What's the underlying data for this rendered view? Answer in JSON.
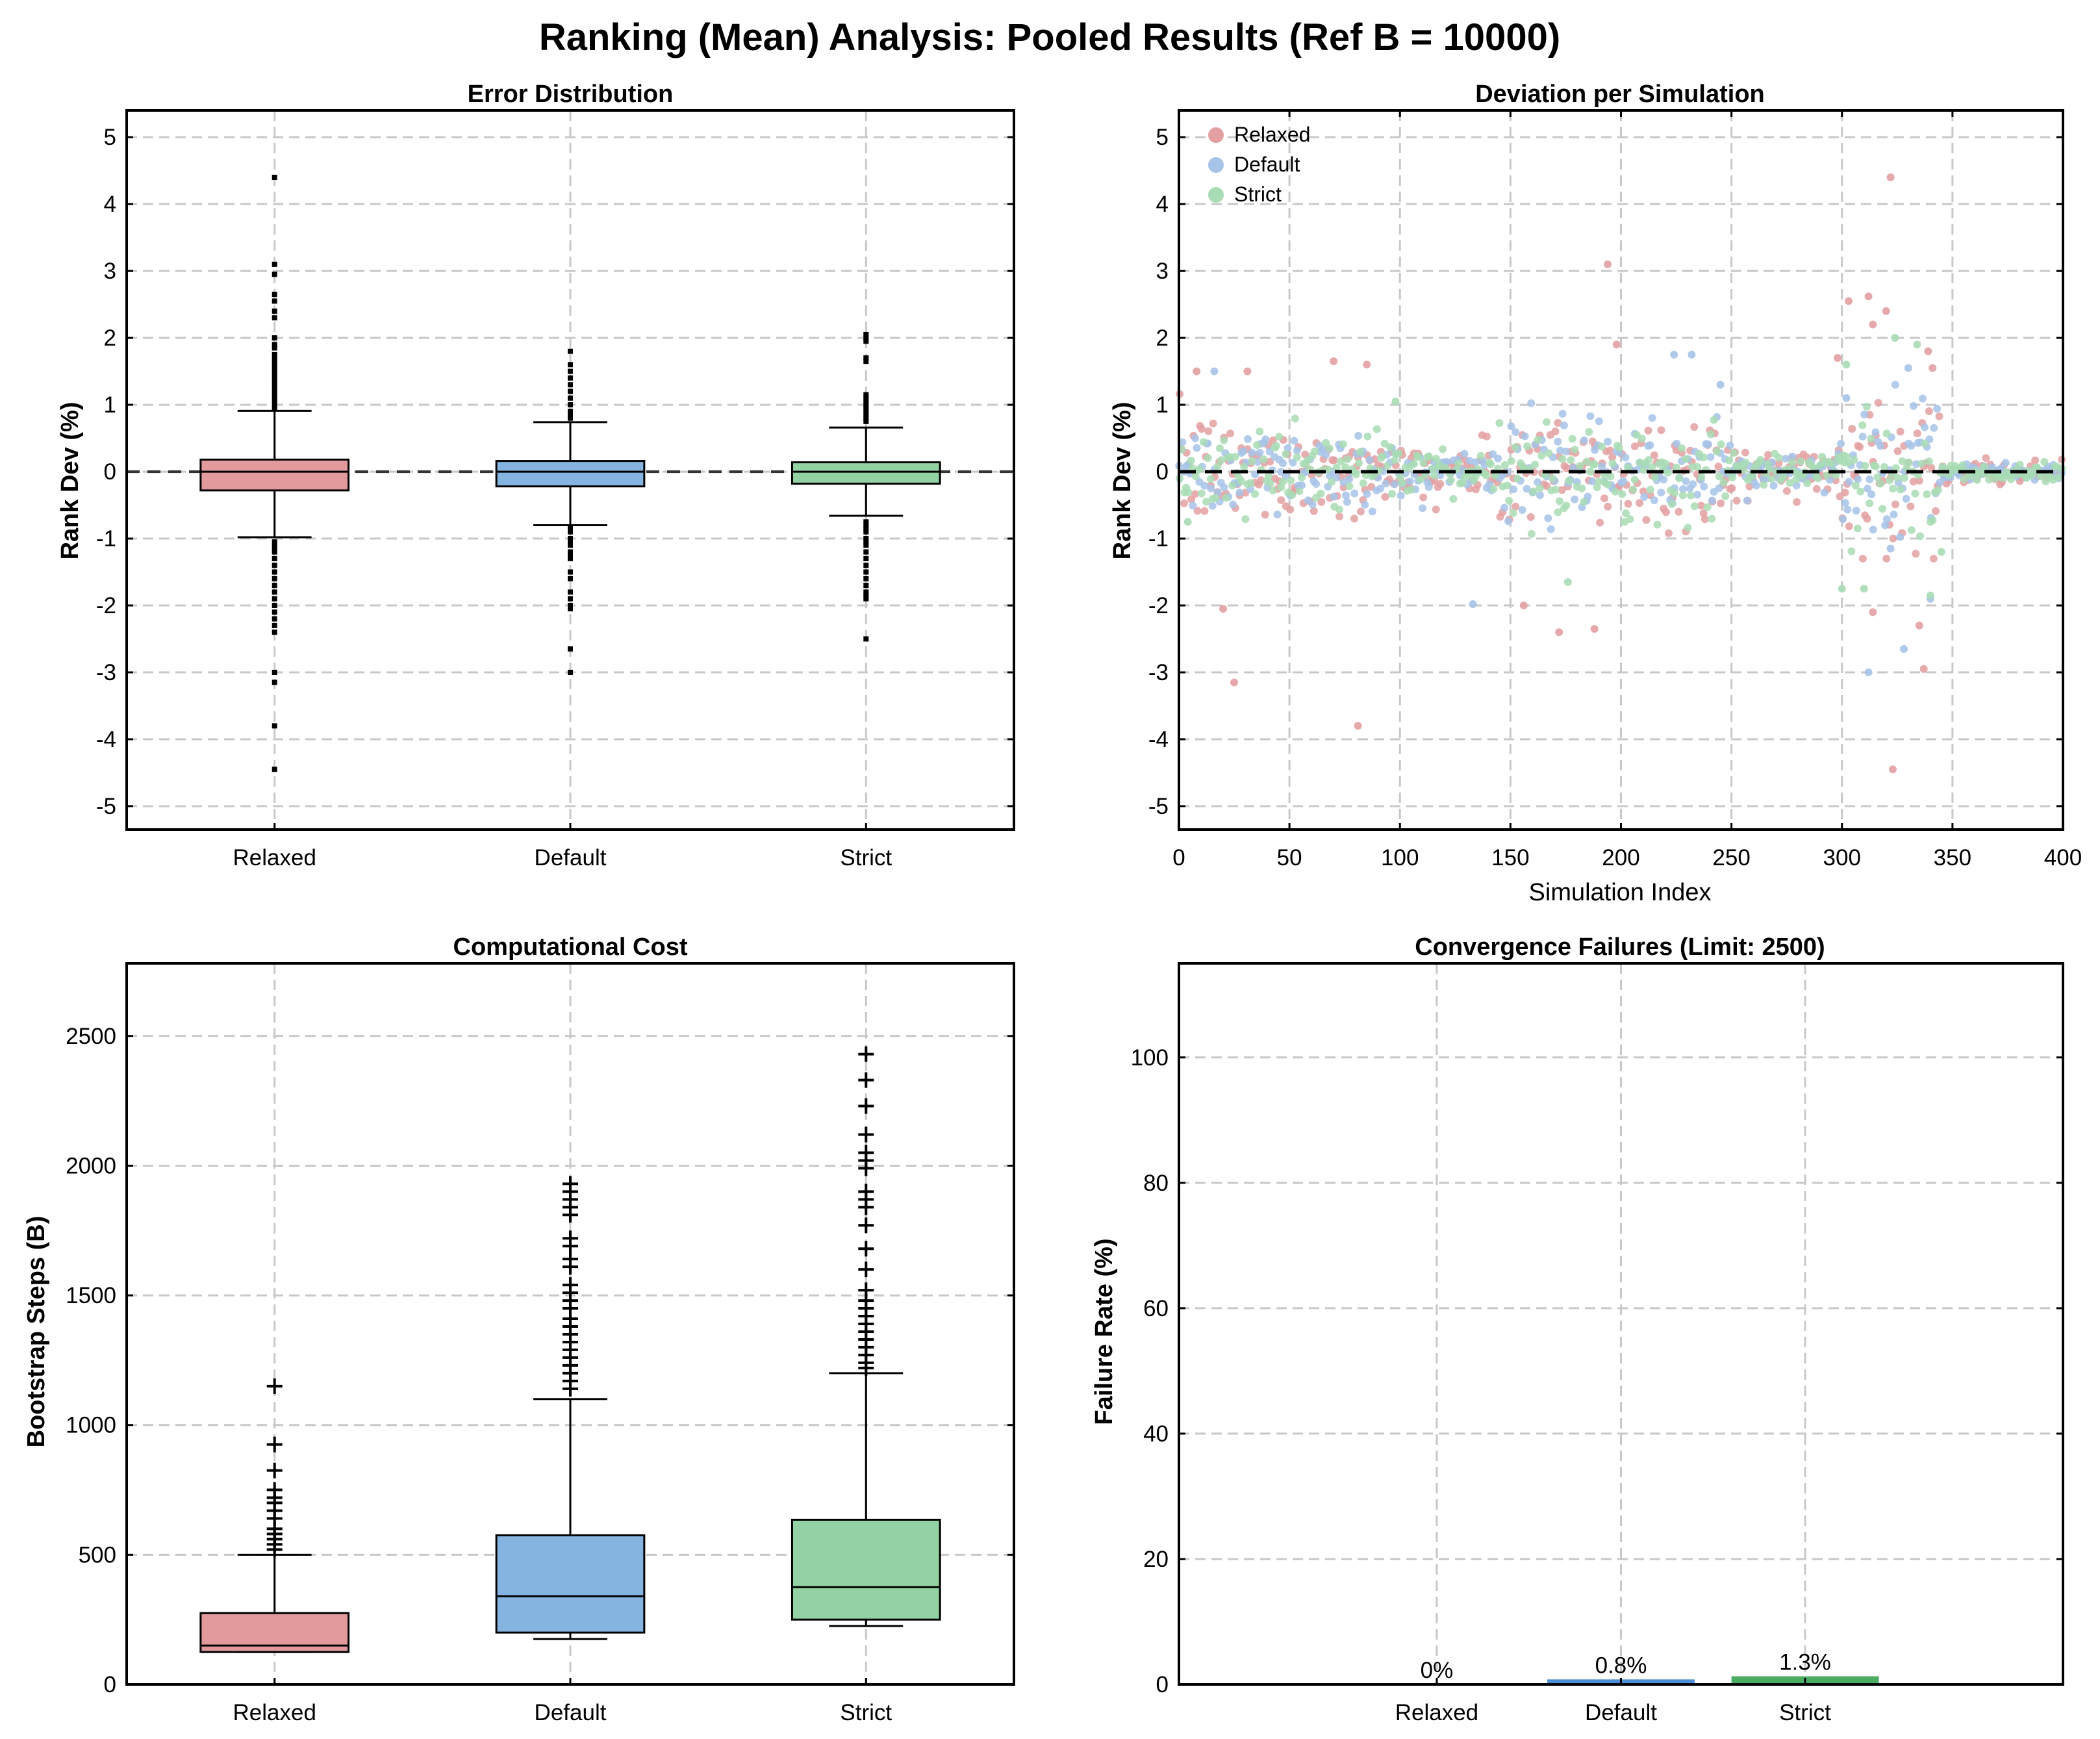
{
  "title": "Ranking (Mean) Analysis: Pooled Results (Ref B = 10000)",
  "colors": {
    "relaxed": "#e39a9c",
    "default": "#86b4e0",
    "strict": "#93d2a2",
    "relaxed_dot": "#e3a0a2",
    "default_dot": "#a6c3e8",
    "strict_dot": "#a8dcb4",
    "bar_default": "#4a8fd8",
    "bar_strict": "#4aad62"
  },
  "chart_data": [
    {
      "type": "box",
      "title": "Error Distribution",
      "ylabel": "Rank Dev (%)",
      "ylim": [
        -5.35,
        5.4
      ],
      "yticks": [
        5,
        4,
        3,
        2,
        1,
        0,
        -1,
        -2,
        -3,
        -4,
        -5
      ],
      "ytick_labels": [
        "5",
        "4",
        "3",
        "2",
        "1",
        "0",
        "-1",
        "-2",
        "-3",
        "-4",
        "-5"
      ],
      "categories": [
        "Relaxed",
        "Default",
        "Strict"
      ],
      "reference_line": 0,
      "boxes": [
        {
          "q1": -0.28,
          "median": 0.0,
          "q3": 0.18,
          "whislo": -0.98,
          "whishi": 0.91,
          "fliers": [
            4.4,
            3.1,
            2.95,
            2.65,
            2.55,
            2.4,
            2.3,
            2.0,
            1.9,
            1.85,
            1.75,
            1.7,
            1.65,
            1.6,
            1.55,
            1.5,
            1.45,
            1.4,
            1.35,
            1.3,
            1.25,
            1.2,
            1.15,
            1.1,
            1.05,
            1.0,
            0.95,
            -1.05,
            -1.1,
            -1.15,
            -1.2,
            -1.3,
            -1.4,
            -1.5,
            -1.6,
            -1.7,
            -1.8,
            -1.9,
            -2.0,
            -2.1,
            -2.2,
            -2.3,
            -2.4,
            -3.0,
            -3.15,
            -3.8,
            -4.45
          ]
        },
        {
          "q1": -0.22,
          "median": 0.0,
          "q3": 0.16,
          "whislo": -0.8,
          "whishi": 0.74,
          "fliers": [
            1.8,
            1.6,
            1.5,
            1.4,
            1.3,
            1.2,
            1.1,
            1.0,
            0.9,
            0.85,
            0.8,
            -0.85,
            -0.9,
            -1.0,
            -1.05,
            -1.1,
            -1.2,
            -1.25,
            -1.3,
            -1.5,
            -1.6,
            -1.8,
            -1.9,
            -2.0,
            -2.05,
            -2.65,
            -3.0
          ]
        },
        {
          "q1": -0.18,
          "median": 0.0,
          "q3": 0.14,
          "whislo": -0.66,
          "whishi": 0.66,
          "fliers": [
            2.05,
            2.0,
            1.95,
            1.7,
            1.65,
            1.15,
            1.1,
            1.05,
            1.0,
            0.95,
            0.9,
            0.85,
            0.8,
            0.75,
            -0.75,
            -0.8,
            -0.85,
            -0.9,
            -1.0,
            -1.05,
            -1.1,
            -1.2,
            -1.3,
            -1.4,
            -1.5,
            -1.6,
            -1.7,
            -1.8,
            -1.85,
            -1.9,
            -2.5
          ]
        }
      ]
    },
    {
      "type": "scatter",
      "title": "Deviation per Simulation",
      "xlabel": "Simulation Index",
      "ylabel": "Rank Dev (%)",
      "xlim": [
        0,
        400
      ],
      "ylim": [
        -5.35,
        5.4
      ],
      "xticks": [
        0,
        50,
        100,
        150,
        200,
        250,
        300,
        350,
        400
      ],
      "xtick_labels": [
        "0",
        "50",
        "100",
        "150",
        "200",
        "250",
        "300",
        "350",
        "400"
      ],
      "yticks": [
        5,
        4,
        3,
        2,
        1,
        0,
        -1,
        -2,
        -3,
        -4,
        -5
      ],
      "ytick_labels": [
        "5",
        "4",
        "3",
        "2",
        "1",
        "0",
        "-1",
        "-2",
        "-3",
        "-4",
        "-5"
      ],
      "reference_line": 0,
      "legend": [
        "Relaxed",
        "Default",
        "Strict"
      ],
      "legend_position": "upper left",
      "points_per_series": 400,
      "series": [
        {
          "name": "Relaxed",
          "outliers": [
            [
              322,
              4.4
            ],
            [
              194,
              3.1
            ],
            [
              312,
              2.62
            ],
            [
              303,
              2.55
            ],
            [
              320,
              2.4
            ],
            [
              314,
              2.2
            ],
            [
              20,
              -2.05
            ],
            [
              25,
              -3.15
            ],
            [
              81,
              -3.8
            ],
            [
              323,
              -4.45
            ],
            [
              337,
              -2.95
            ],
            [
              335,
              -2.3
            ],
            [
              172,
              -2.4
            ],
            [
              188,
              -2.35
            ],
            [
              156,
              -2.0
            ],
            [
              314,
              -2.1
            ],
            [
              8,
              1.5
            ],
            [
              31,
              1.5
            ],
            [
              70,
              1.65
            ],
            [
              85,
              1.6
            ],
            [
              298,
              1.7
            ],
            [
              341,
              1.55
            ],
            [
              339,
              1.8
            ],
            [
              198,
              1.9
            ]
          ]
        },
        {
          "name": "Default",
          "outliers": [
            [
              312,
              -3.0
            ],
            [
              328,
              -2.65
            ],
            [
              133,
              -1.98
            ],
            [
              16,
              1.5
            ],
            [
              224,
              1.75
            ],
            [
              232,
              1.75
            ],
            [
              330,
              1.55
            ],
            [
              340,
              -1.9
            ],
            [
              322,
              -1.15
            ],
            [
              245,
              1.3
            ],
            [
              302,
              1.1
            ]
          ]
        },
        {
          "name": "Strict",
          "outliers": [
            [
              324,
              2.0
            ],
            [
              334,
              1.9
            ],
            [
              302,
              1.6
            ],
            [
              340,
              -1.85
            ],
            [
              310,
              -1.75
            ],
            [
              300,
              -1.75
            ],
            [
              176,
              -1.65
            ],
            [
              4,
              -0.75
            ],
            [
              98,
              1.05
            ],
            [
              345,
              -1.2
            ]
          ]
        }
      ]
    },
    {
      "type": "box",
      "title": "Computational Cost",
      "ylabel": "Bootstrap Steps (B)",
      "ylim": [
        0,
        2780
      ],
      "yticks": [
        0,
        500,
        1000,
        1500,
        2000,
        2500
      ],
      "ytick_labels": [
        "0",
        "500",
        "1000",
        "1500",
        "2000",
        "2500"
      ],
      "categories": [
        "Relaxed",
        "Default",
        "Strict"
      ],
      "flier_marker": "+",
      "boxes": [
        {
          "q1": 125,
          "median": 150,
          "q3": 275,
          "whislo": 125,
          "whishi": 500,
          "fliers": [
            1150,
            925,
            825,
            750,
            720,
            700,
            670,
            640,
            600,
            580,
            560,
            540,
            520
          ]
        },
        {
          "q1": 200,
          "median": 340,
          "q3": 575,
          "whislo": 175,
          "whishi": 1100,
          "fliers": [
            1930,
            1900,
            1870,
            1840,
            1810,
            1720,
            1690,
            1640,
            1610,
            1540,
            1510,
            1480,
            1450,
            1410,
            1380,
            1350,
            1320,
            1290,
            1260,
            1230,
            1200,
            1170,
            1140
          ]
        },
        {
          "q1": 250,
          "median": 375,
          "q3": 635,
          "whislo": 225,
          "whishi": 1200,
          "fliers": [
            2430,
            2330,
            2230,
            2120,
            2050,
            2020,
            1990,
            1900,
            1870,
            1840,
            1770,
            1680,
            1600,
            1520,
            1480,
            1450,
            1420,
            1390,
            1360,
            1330,
            1300,
            1270,
            1240,
            1220
          ]
        }
      ]
    },
    {
      "type": "bar",
      "title": "Convergence Failures (Limit: 2500)",
      "ylabel": "Failure Rate (%)",
      "ylim": [
        0,
        115
      ],
      "yticks": [
        0,
        20,
        40,
        60,
        80,
        100
      ],
      "ytick_labels": [
        "0",
        "20",
        "40",
        "60",
        "80",
        "100"
      ],
      "categories": [
        "Relaxed",
        "Default",
        "Strict"
      ],
      "values": [
        0,
        0.8,
        1.3
      ],
      "value_labels": [
        "0%",
        "0.8%",
        "1.3%"
      ],
      "xlim": [
        -1.4,
        3.4
      ]
    }
  ]
}
